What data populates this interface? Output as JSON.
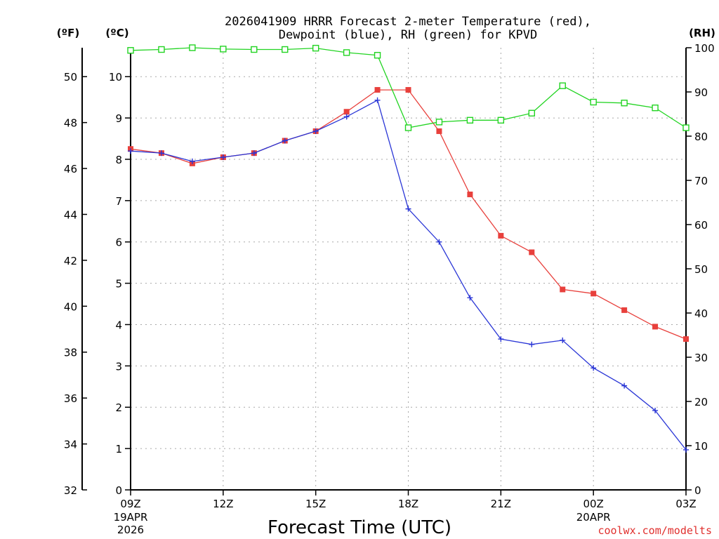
{
  "chart_data": {
    "type": "line",
    "title_line1": "2026041909 HRRR Forecast 2-meter Temperature (red),",
    "title_line2": "Dewpoint (blue), RH (green) for KPVD",
    "xlabel": "Forecast Time (UTC)",
    "left_outer_unit": "(ºF)",
    "left_inner_unit": "(ºC)",
    "right_unit": "(RH)",
    "credit": "coolwx.com/modelts",
    "x_tick_labels": [
      "09Z",
      "12Z",
      "15Z",
      "18Z",
      "21Z",
      "00Z",
      "03Z"
    ],
    "x_tick_hours": [
      0,
      3,
      6,
      9,
      12,
      15,
      18
    ],
    "date_labels": [
      {
        "hour": 0,
        "lines": [
          "19APR",
          "2026"
        ]
      },
      {
        "hour": 15,
        "lines": [
          "20APR"
        ]
      }
    ],
    "xlim": [
      0,
      18
    ],
    "celsius_axis": {
      "ylim": [
        0,
        10.7
      ],
      "ticks": [
        0,
        1,
        2,
        3,
        4,
        5,
        6,
        7,
        8,
        9,
        10
      ]
    },
    "fahrenheit_axis": {
      "ticks": [
        32,
        34,
        36,
        38,
        40,
        42,
        44,
        46,
        48,
        50
      ]
    },
    "rh_axis": {
      "ylim": [
        0,
        100
      ],
      "ticks": [
        0,
        10,
        20,
        30,
        40,
        50,
        60,
        70,
        80,
        90,
        100
      ]
    },
    "grid": true,
    "series": [
      {
        "name": "Temperature",
        "axis": "celsius",
        "color": "#e8403c",
        "marker": "filled-square",
        "x": [
          0,
          1,
          2,
          3,
          4,
          5,
          6,
          7,
          8,
          9,
          10,
          11,
          12,
          13,
          14,
          15,
          16,
          17,
          18
        ],
        "values": [
          8.25,
          8.15,
          7.9,
          8.05,
          8.15,
          8.45,
          8.68,
          9.15,
          9.68,
          9.68,
          8.68,
          7.15,
          6.15,
          5.75,
          4.85,
          4.75,
          4.35,
          3.95,
          3.65
        ]
      },
      {
        "name": "Dewpoint",
        "axis": "celsius",
        "color": "#2a36d6",
        "marker": "plus",
        "x": [
          0,
          1,
          2,
          3,
          4,
          5,
          6,
          7,
          8,
          9,
          10,
          11,
          12,
          13,
          14,
          15,
          16,
          17,
          18
        ],
        "values": [
          8.2,
          8.15,
          7.95,
          8.05,
          8.15,
          8.45,
          8.68,
          9.03,
          9.43,
          6.8,
          6.0,
          4.65,
          3.65,
          3.52,
          3.62,
          2.95,
          2.52,
          1.92,
          0.97
        ]
      },
      {
        "name": "RH",
        "axis": "rh",
        "color": "#22d422",
        "marker": "open-square",
        "x": [
          0,
          1,
          2,
          3,
          4,
          5,
          6,
          7,
          8,
          9,
          10,
          11,
          12,
          13,
          14,
          15,
          16,
          17,
          18
        ],
        "values": [
          99.4,
          99.6,
          100,
          99.7,
          99.6,
          99.6,
          99.9,
          98.9,
          98.3,
          81.9,
          83.2,
          83.6,
          83.6,
          85.2,
          91.4,
          87.7,
          87.5,
          86.4,
          81.9
        ]
      }
    ]
  }
}
